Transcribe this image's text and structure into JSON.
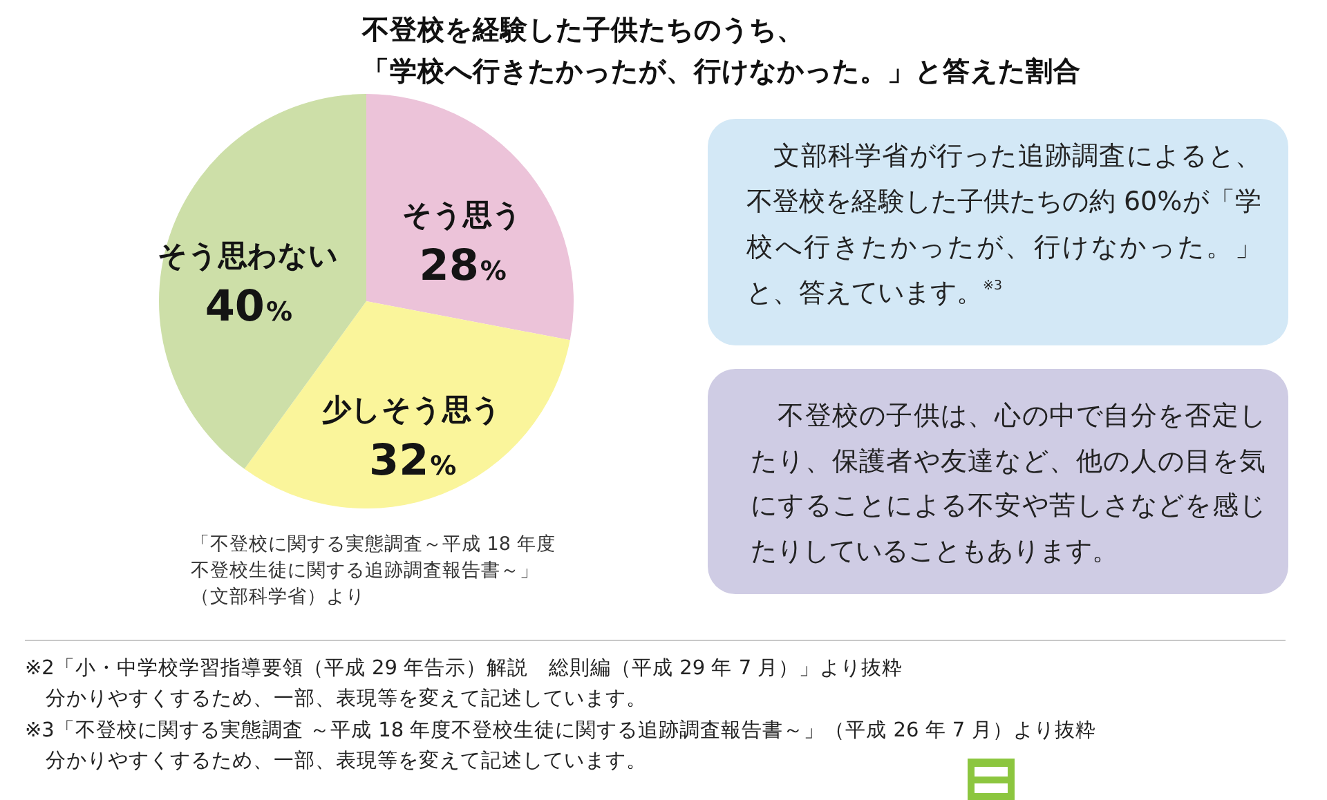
{
  "chart_data": {
    "type": "pie",
    "title": "不登校を経験した子供たちのうち、「学校へ行きたかったが、行けなかった。」と答えた割合",
    "categories": [
      "そう思う",
      "少しそう思う",
      "そう思わない"
    ],
    "values": [
      28,
      32,
      40
    ],
    "colors": [
      "#ecc3d9",
      "#faf59b",
      "#cddfa8"
    ],
    "value_labels": [
      "28%",
      "32%",
      "40%"
    ],
    "annotations": [
      "「不登校に関する実態調査～平成 18 年度不登校生徒に関する追跡調査報告書～」（文部科学省）より",
      "　文部科学省が行った追跡調査によると、不登校を経験した子供たちの約 60%が「学校へ行きたかったが、行けなかった。」と、答えています。$^{※3}$",
      "　不登校の子供は、心の中で自分を否定したり、保護者や友達など、他の人の目を気にすることによる不安や苦しさなどを感じたりしていることもあります。",
      "※2「小・中学校学習指導要領（平成 29 年告示）解説　総則編（平成 29 年 7 月）」より抜粋",
      "分かりやすくするため、一部、表現等を変えて記述しています。",
      "※3「不登校に関する実態調査 ～平成 18 年度不登校生徒に関する追跡調査報告書～」（平成 26 年 7 月）より抜粋",
      "分かりやすくするため、一部、表現等を変えて記述しています。"
    ]
  }
}
